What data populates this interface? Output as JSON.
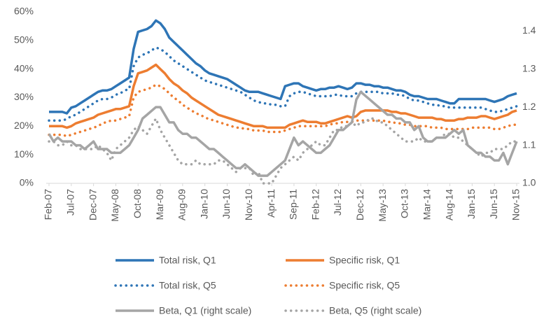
{
  "chart_data": {
    "type": "line",
    "categories": [
      "Feb-07",
      null,
      null,
      null,
      null,
      "Jul-07",
      null,
      null,
      null,
      null,
      "Dec-07",
      null,
      null,
      null,
      null,
      "May-08",
      null,
      null,
      null,
      null,
      "Oct-08",
      null,
      null,
      null,
      null,
      "Mar-09",
      null,
      null,
      null,
      null,
      "Aug-09",
      null,
      null,
      null,
      null,
      "Jan-10",
      null,
      null,
      null,
      null,
      "Jun-10",
      null,
      null,
      null,
      null,
      "Nov-10",
      null,
      null,
      null,
      null,
      "Apr-11",
      null,
      null,
      null,
      null,
      "Sep-11",
      null,
      null,
      null,
      null,
      "Feb-12",
      null,
      null,
      null,
      null,
      "Jul-12",
      null,
      null,
      null,
      null,
      "Dec-12",
      null,
      null,
      null,
      null,
      "May-13",
      null,
      null,
      null,
      null,
      "Oct-13",
      null,
      null,
      null,
      null,
      "Mar-14",
      null,
      null,
      null,
      null,
      "Aug-14",
      null,
      null,
      null,
      null,
      "Jan-15",
      null,
      null,
      null,
      null,
      "Jun-15",
      null,
      null,
      null,
      null,
      "Nov-15"
    ],
    "ylim": [
      0,
      60
    ],
    "yticks": [
      {
        "value": 0,
        "label": "0%"
      },
      {
        "value": 10,
        "label": "10%"
      },
      {
        "value": 20,
        "label": "20%"
      },
      {
        "value": 30,
        "label": "30%"
      },
      {
        "value": 40,
        "label": "40%"
      },
      {
        "value": 50,
        "label": "50%"
      },
      {
        "value": 60,
        "label": "60%"
      }
    ],
    "y2lim": [
      1.0,
      1.45
    ],
    "y2ticks": [
      {
        "value": 1.0,
        "label": "1.0"
      },
      1.1,
      1.2,
      1.3,
      1.4
    ],
    "series": [
      {
        "name": "Total risk, Q1",
        "color": "#2e75b6",
        "style": "solid",
        "values": [
          25,
          25,
          25,
          25,
          24.5,
          26.5,
          27,
          28,
          29,
          30,
          31,
          32,
          32.5,
          32.5,
          33,
          34,
          35,
          36,
          37,
          47,
          53,
          53.5,
          54,
          55,
          57,
          56,
          54,
          51,
          49.5,
          48,
          46.5,
          45,
          43.5,
          42,
          41,
          39.5,
          38.5,
          38,
          37.5,
          37,
          36.5,
          35.5,
          34.5,
          33.5,
          32.5,
          32,
          32,
          32,
          31.5,
          31,
          30.5,
          30,
          29.5,
          34,
          34.5,
          35,
          35,
          34,
          33.5,
          33,
          32.5,
          33,
          33,
          33.5,
          33.5,
          34,
          33.5,
          33,
          33.5,
          35,
          35,
          34.5,
          34.5,
          34,
          34,
          33.5,
          33.5,
          33,
          32.5,
          32.5,
          32,
          31,
          30.5,
          30.5,
          30,
          29.5,
          29.5,
          29.5,
          29,
          28.5,
          28,
          28,
          29.5,
          29.5,
          29.5,
          29.5,
          29.5,
          29.5,
          29.5,
          29,
          28.5,
          29,
          29.5,
          30.5,
          31,
          31.5
        ]
      },
      {
        "name": "Specific risk, Q1",
        "color": "#ed7d31",
        "style": "solid",
        "values": [
          20,
          20,
          20,
          20,
          19.5,
          20,
          21,
          21.5,
          22,
          22.5,
          23,
          24,
          24.5,
          25,
          25.5,
          26,
          26,
          26.5,
          27,
          34,
          38.5,
          39,
          39.5,
          40.5,
          41.5,
          40,
          38.5,
          36.5,
          35,
          34,
          32.5,
          31.5,
          30,
          29,
          28,
          27,
          26,
          25,
          24,
          23.5,
          23,
          22.5,
          22,
          21.5,
          21,
          20.5,
          20,
          20,
          20,
          19.5,
          19.5,
          19.5,
          19.5,
          19.5,
          20.5,
          21,
          21.5,
          22,
          21.5,
          21.5,
          21.5,
          21,
          21,
          21.5,
          22,
          22.5,
          23,
          23.5,
          23,
          23.5,
          25,
          25.5,
          25.5,
          25.5,
          25.5,
          25.5,
          25.5,
          25,
          25,
          24.5,
          24.5,
          24,
          23.5,
          23,
          23,
          23,
          23,
          22.5,
          22.5,
          22,
          22,
          22,
          22.5,
          22.5,
          23,
          23,
          23,
          23.5,
          23.5,
          23,
          22.5,
          23,
          23.5,
          24,
          25,
          25.5
        ]
      },
      {
        "name": "Total risk, Q5",
        "color": "#2e75b6",
        "style": "dotted",
        "values": [
          22,
          22,
          22,
          22,
          22.5,
          23.5,
          24,
          25,
          26,
          27,
          28,
          29,
          29.5,
          29.5,
          30,
          31,
          31.5,
          32.5,
          33,
          41,
          44,
          45,
          45.5,
          46.5,
          47.5,
          47,
          46,
          44.5,
          43,
          42,
          41,
          40,
          39,
          38,
          37,
          36,
          35.5,
          35,
          34.5,
          34,
          33.5,
          33,
          32.5,
          32,
          31,
          30,
          29,
          28.5,
          28,
          28,
          27.5,
          27.5,
          27,
          27,
          30.5,
          31.5,
          32,
          32,
          31.5,
          31,
          30.5,
          30.5,
          30.5,
          30.5,
          31,
          31,
          30.5,
          30.5,
          30.5,
          31.5,
          32,
          32,
          32,
          32,
          32,
          31.5,
          31.5,
          31.5,
          31,
          31,
          30.5,
          29.5,
          29,
          29,
          28.5,
          28,
          27.5,
          27.5,
          27,
          27,
          26.5,
          26.5,
          26.5,
          26.5,
          26.5,
          26.5,
          26.5,
          26.5,
          26,
          25.5,
          25,
          25,
          25.5,
          26,
          26.5,
          27
        ]
      },
      {
        "name": "Specific risk, Q5",
        "color": "#ed7d31",
        "style": "dotted",
        "values": [
          17,
          17,
          17,
          17,
          16.5,
          17,
          17.5,
          18,
          18.5,
          19,
          19.5,
          20,
          21,
          21.5,
          22,
          22,
          22.5,
          23,
          23.5,
          30,
          32,
          32.5,
          33,
          33.5,
          34.5,
          34,
          33,
          31.5,
          30,
          29,
          27.5,
          26.5,
          25.5,
          24.5,
          24,
          23,
          22.5,
          22,
          21.5,
          21,
          20.5,
          20,
          19.5,
          19.5,
          19,
          19,
          18.5,
          18.5,
          18.5,
          18,
          18,
          18,
          18,
          18.5,
          19,
          19.5,
          20,
          20,
          20,
          20,
          20,
          20,
          20,
          20.5,
          21,
          21,
          21.5,
          21.5,
          21.5,
          22,
          22,
          22,
          22,
          22,
          22,
          22,
          21.5,
          21.5,
          21,
          21,
          20.5,
          20.5,
          20,
          20,
          20,
          20,
          19.5,
          19.5,
          19.5,
          19,
          19,
          19,
          19,
          19,
          19,
          19.5,
          19.5,
          19.5,
          19.5,
          19.5,
          19,
          19,
          19.5,
          20,
          20.5,
          20.5
        ]
      },
      {
        "name": "Beta, Q1 (right scale)",
        "color": "#a5a5a5",
        "style": "solid",
        "axis": "y2",
        "values": [
          1.13,
          1.11,
          1.12,
          1.11,
          1.11,
          1.11,
          1.1,
          1.1,
          1.09,
          1.1,
          1.11,
          1.09,
          1.09,
          1.09,
          1.08,
          1.08,
          1.08,
          1.09,
          1.1,
          1.12,
          1.14,
          1.17,
          1.18,
          1.19,
          1.2,
          1.2,
          1.18,
          1.16,
          1.16,
          1.14,
          1.13,
          1.13,
          1.12,
          1.12,
          1.11,
          1.1,
          1.09,
          1.09,
          1.08,
          1.07,
          1.06,
          1.05,
          1.04,
          1.04,
          1.05,
          1.04,
          1.03,
          1.02,
          1.02,
          1.02,
          1.03,
          1.04,
          1.05,
          1.06,
          1.09,
          1.12,
          1.1,
          1.11,
          1.1,
          1.09,
          1.08,
          1.08,
          1.09,
          1.1,
          1.12,
          1.14,
          1.14,
          1.15,
          1.16,
          1.22,
          1.24,
          1.23,
          1.22,
          1.21,
          1.2,
          1.19,
          1.18,
          1.18,
          1.17,
          1.17,
          1.16,
          1.16,
          1.14,
          1.15,
          1.12,
          1.11,
          1.11,
          1.12,
          1.12,
          1.12,
          1.13,
          1.14,
          1.13,
          1.14,
          1.1,
          1.09,
          1.08,
          1.08,
          1.07,
          1.07,
          1.06,
          1.06,
          1.08,
          1.05,
          1.08,
          1.11
        ]
      },
      {
        "name": "Beta, Q5 (right scale)",
        "color": "#a5a5a5",
        "style": "dotted",
        "axis": "y2",
        "values": [
          1.11,
          1.11,
          1.1,
          1.1,
          1.11,
          1.1,
          1.1,
          1.09,
          1.09,
          1.09,
          1.09,
          1.1,
          1.09,
          1.08,
          1.06,
          1.09,
          1.1,
          1.11,
          1.12,
          1.14,
          1.15,
          1.14,
          1.13,
          1.15,
          1.17,
          1.14,
          1.12,
          1.1,
          1.08,
          1.06,
          1.05,
          1.05,
          1.05,
          1.06,
          1.05,
          1.05,
          1.05,
          1.05,
          1.06,
          1.06,
          1.05,
          1.04,
          1.03,
          1.04,
          1.04,
          1.04,
          1.02,
          1.03,
          1.0,
          1.0,
          1.0,
          1.02,
          1.04,
          1.05,
          1.06,
          1.07,
          1.06,
          1.08,
          1.09,
          1.1,
          1.11,
          1.1,
          1.1,
          1.12,
          1.14,
          1.14,
          1.15,
          1.15,
          1.16,
          1.15,
          1.16,
          1.16,
          1.17,
          1.17,
          1.16,
          1.16,
          1.15,
          1.14,
          1.13,
          1.12,
          1.11,
          1.11,
          1.11,
          1.12,
          1.11,
          1.11,
          1.11,
          1.12,
          1.12,
          1.13,
          1.13,
          1.12,
          1.12,
          1.11,
          1.1,
          1.09,
          1.08,
          1.07,
          1.08,
          1.08,
          1.09,
          1.09,
          1.09,
          1.1,
          1.11,
          1.11
        ]
      }
    ]
  }
}
